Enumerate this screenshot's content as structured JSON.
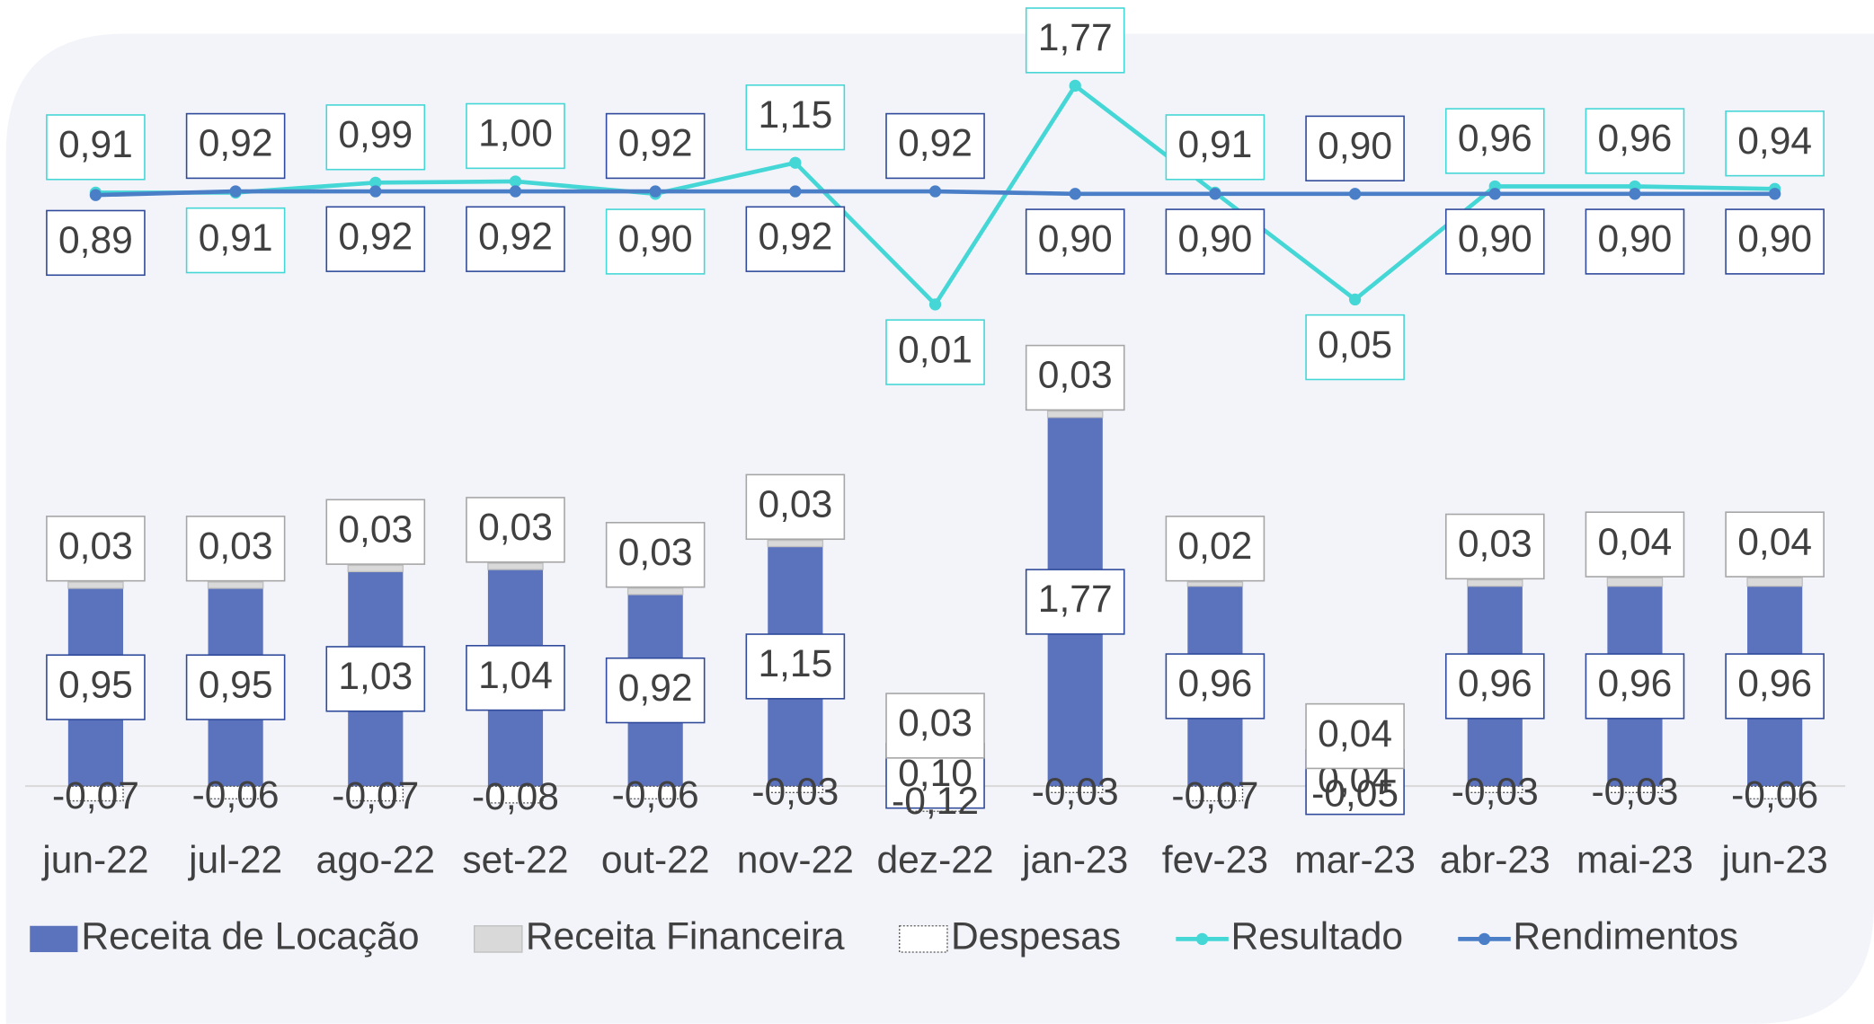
{
  "chart_data": {
    "type": "bar",
    "stacked": true,
    "legend": "bottom",
    "categories": [
      "jun-22",
      "jul-22",
      "ago-22",
      "set-22",
      "out-22",
      "nov-22",
      "dez-22",
      "jan-23",
      "fev-23",
      "mar-23",
      "abr-23",
      "mai-23",
      "jun-23"
    ],
    "ylim": [
      -0.24,
      3.6
    ],
    "y2lim": [
      -4.27,
      2.17
    ],
    "series": [
      {
        "name": "Receita de Locação",
        "type": "bar",
        "color": "#5b72bd",
        "values": [
          0.95,
          0.95,
          1.03,
          1.04,
          0.92,
          1.15,
          0.1,
          1.77,
          0.96,
          0.04,
          0.96,
          0.96,
          0.96
        ],
        "value_labels": [
          "0,95",
          "0,95",
          "1,03",
          "1,04",
          "0,92",
          "1,15",
          "0,10",
          "1,77",
          "0,96",
          "0,04",
          "0,96",
          "0,96",
          "0,96"
        ]
      },
      {
        "name": "Receita Financeira",
        "type": "bar",
        "color": "#d9d9d9",
        "values": [
          0.03,
          0.03,
          0.03,
          0.03,
          0.03,
          0.03,
          0.03,
          0.03,
          0.02,
          0.04,
          0.03,
          0.04,
          0.04
        ],
        "value_labels": [
          "0,03",
          "0,03",
          "0,03",
          "0,03",
          "0,03",
          "0,03",
          "0,03",
          "0,03",
          "0,02",
          "0,04",
          "0,03",
          "0,04",
          "0,04"
        ]
      },
      {
        "name": "Despesas",
        "type": "bar",
        "color": "#ffffff",
        "values": [
          -0.07,
          -0.06,
          -0.07,
          -0.08,
          -0.06,
          -0.03,
          -0.12,
          -0.03,
          -0.07,
          -0.05,
          -0.03,
          -0.03,
          -0.06
        ],
        "value_labels": [
          "-0,07",
          "-0,06",
          "-0,07",
          "-0,08",
          "-0,06",
          "-0,03",
          "-0,12",
          "-0,03",
          "-0,07",
          "-0,05",
          "-0,03",
          "-0,03",
          "-0,06"
        ]
      },
      {
        "name": "Resultado",
        "type": "line",
        "axis": "y2",
        "color": "#45d6d6",
        "values": [
          0.91,
          0.91,
          0.99,
          1.0,
          0.9,
          1.15,
          0.01,
          1.77,
          0.91,
          0.05,
          0.96,
          0.96,
          0.94
        ],
        "value_labels": [
          "0,91",
          "0,91",
          "0,99",
          "1,00",
          "0,90",
          "1,15",
          "0,01",
          "1,77",
          "0,91",
          "0,05",
          "0,96",
          "0,96",
          "0,94"
        ]
      },
      {
        "name": "Rendimentos",
        "type": "line",
        "axis": "y2",
        "color": "#4a7fc8",
        "values": [
          0.89,
          0.92,
          0.92,
          0.92,
          0.92,
          0.92,
          0.92,
          0.9,
          0.9,
          0.9,
          0.9,
          0.9,
          0.9
        ],
        "value_labels": [
          "0,89",
          "0,92",
          "0,92",
          "0,92",
          "0,92",
          "0,92",
          "0,92",
          "0,90",
          "0,90",
          "0,90",
          "0,90",
          "0,90",
          "0,90"
        ]
      }
    ]
  }
}
